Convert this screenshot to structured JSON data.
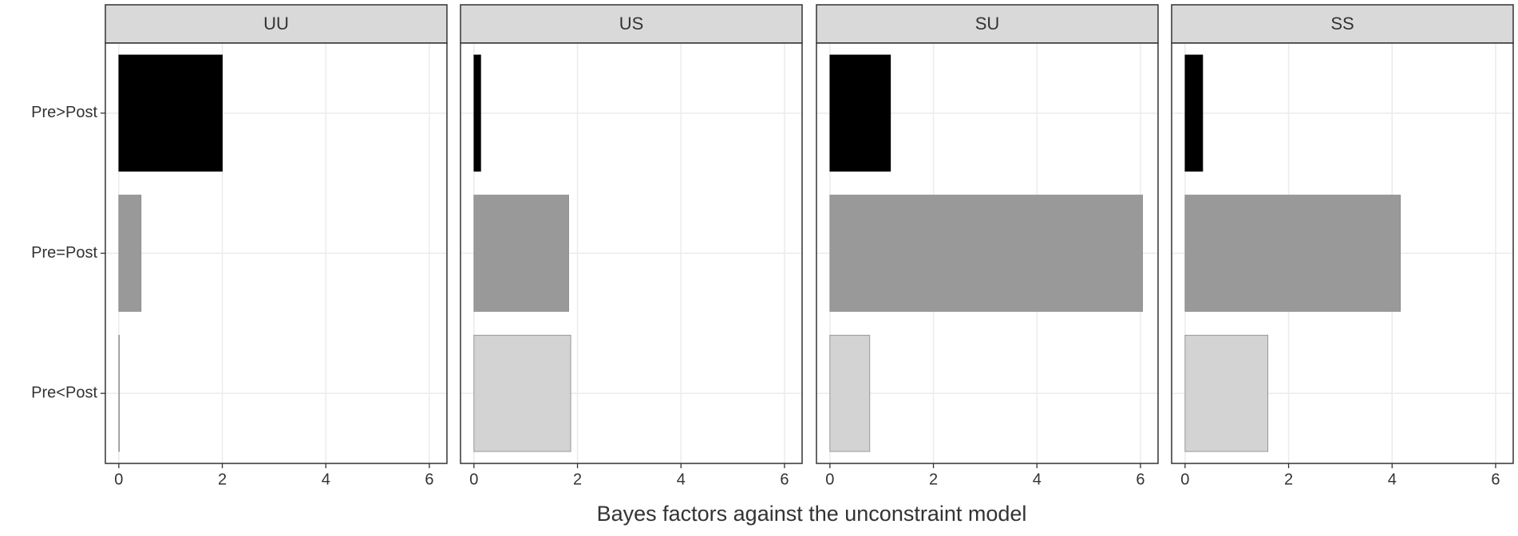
{
  "chart_data": {
    "type": "bar",
    "orientation": "horizontal",
    "xlabel": "Bayes factors against the unconstraint model",
    "categories": [
      "Pre>Post",
      "Pre=Post",
      "Pre<Post"
    ],
    "colors": [
      "#000000",
      "#999999",
      "#d3d3d3"
    ],
    "xlim": [
      -0.26,
      6.34
    ],
    "xticks": [
      0,
      2,
      4,
      6
    ],
    "grid": true,
    "facets": [
      {
        "title": "UU",
        "values": [
          2.0,
          0.43,
          0.01
        ]
      },
      {
        "title": "US",
        "values": [
          0.13,
          1.83,
          1.87
        ]
      },
      {
        "title": "SU",
        "values": [
          1.17,
          6.04,
          0.77
        ]
      },
      {
        "title": "SS",
        "values": [
          0.34,
          4.16,
          1.6
        ]
      }
    ]
  }
}
